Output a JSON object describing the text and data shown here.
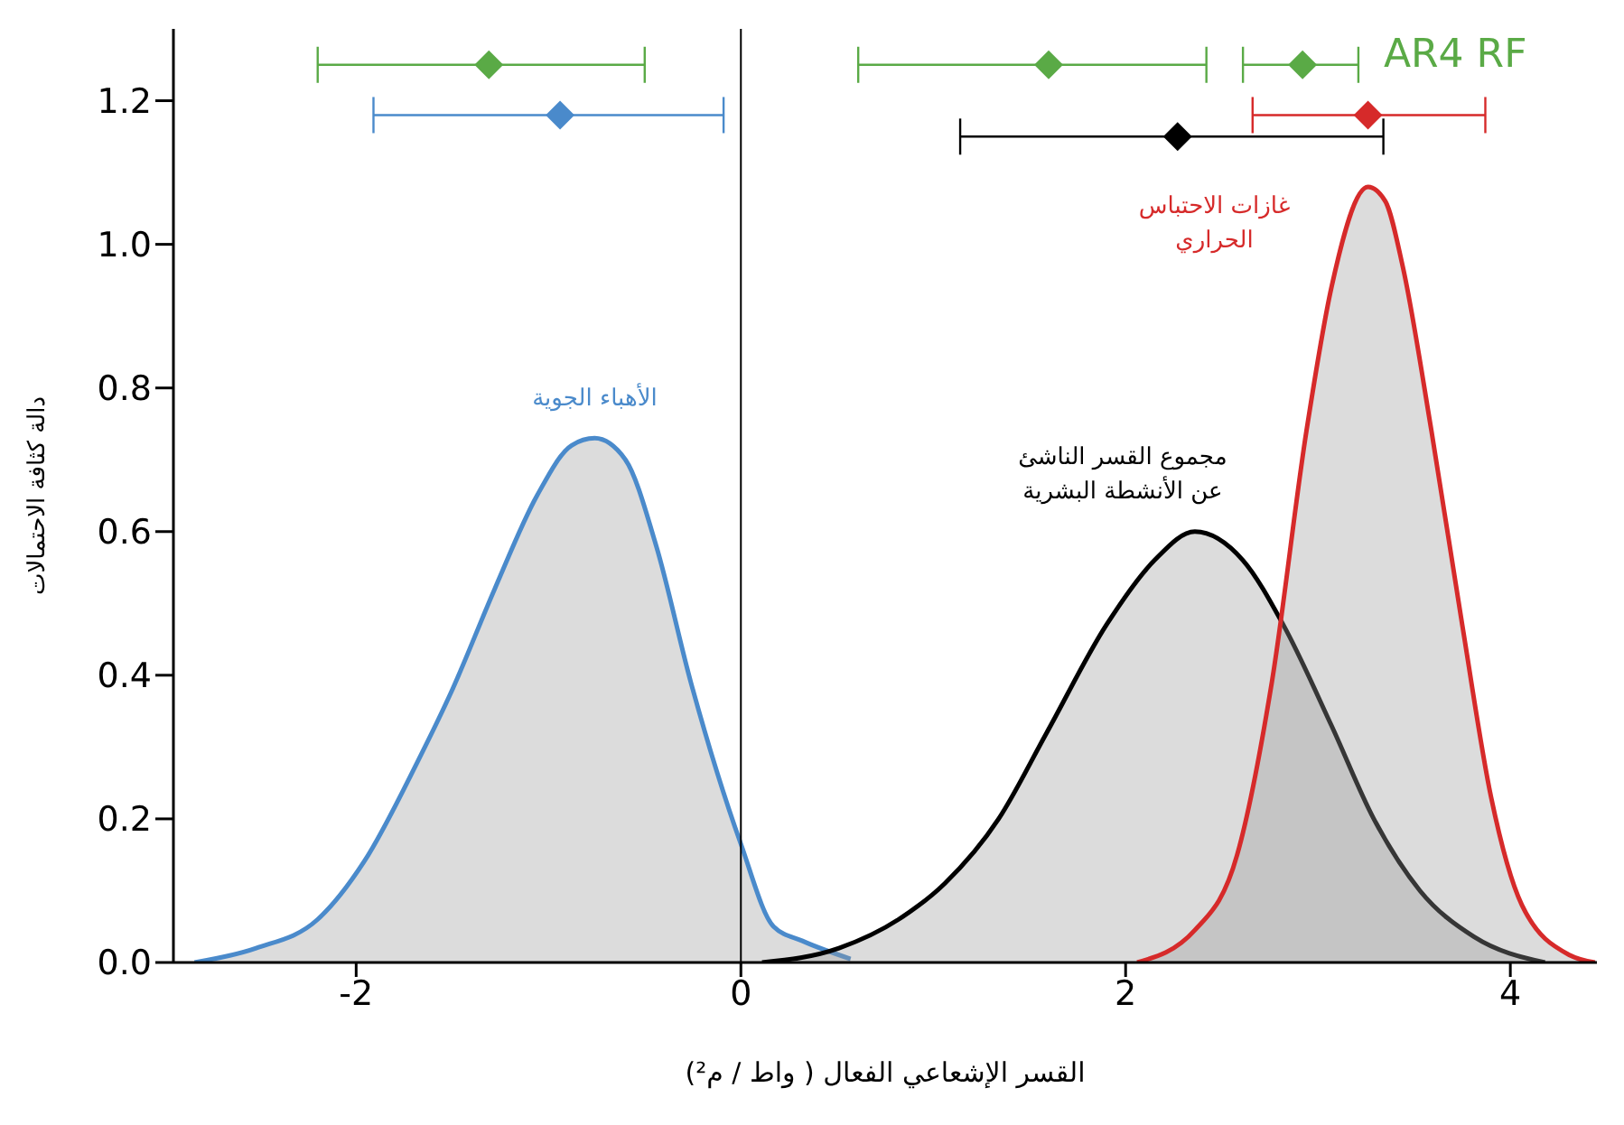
{
  "chart_data": {
    "type": "area",
    "xlabel": "القسر الإشعاعي الفعال ( واط / م²)",
    "ylabel": "دالة كثافة الاحتمالات",
    "xlim": [
      -2.95,
      4.45
    ],
    "ylim": [
      0,
      1.3
    ],
    "xticks": [
      -2,
      0,
      2,
      4
    ],
    "yticks": [
      {
        "value": 0,
        "label": "0.0"
      },
      {
        "value": 0.2,
        "label": "0.2"
      },
      {
        "value": 0.4,
        "label": "0.4"
      },
      {
        "value": 0.6,
        "label": "0.6"
      },
      {
        "value": 0.8,
        "label": "0.8"
      },
      {
        "value": 1.0,
        "label": "1.0"
      },
      {
        "value": 1.2,
        "label": "1.2"
      }
    ],
    "ref_lines": [
      {
        "axis": "x",
        "value": 0,
        "color": "#000000"
      }
    ],
    "series": [
      {
        "name": "الأهباء الجوية",
        "color": "#4a8acb",
        "x": [
          -2.84,
          -2.52,
          -2.2,
          -1.96,
          -1.68,
          -1.5,
          -1.28,
          -1.06,
          -0.88,
          -0.76,
          -0.6,
          -0.44,
          -0.26,
          0,
          0.17,
          0.32,
          0.57
        ],
        "values": [
          0,
          0.02,
          0.06,
          0.14,
          0.28,
          0.38,
          0.52,
          0.65,
          0.72,
          0.73,
          0.7,
          0.58,
          0.39,
          0.165,
          0.05,
          0.03,
          0.005
        ]
      },
      {
        "name": "مجموع القسر الناشئ\nعن الأنشطة البشرية",
        "color": "#000000",
        "x": [
          0.11,
          0.51,
          0.82,
          1.06,
          1.34,
          1.59,
          1.9,
          2.15,
          2.36,
          2.61,
          2.82,
          3.07,
          3.29,
          3.53,
          3.81,
          4.18
        ],
        "values": [
          0,
          0.02,
          0.06,
          0.11,
          0.2,
          0.32,
          0.47,
          0.56,
          0.6,
          0.56,
          0.47,
          0.33,
          0.2,
          0.1,
          0.036,
          0
        ]
      },
      {
        "name": "غازات الاحتباس\nالحراري",
        "color": "#d62a2a",
        "x": [
          2.06,
          2.36,
          2.58,
          2.76,
          2.94,
          3.07,
          3.26,
          3.35,
          3.44,
          3.59,
          3.75,
          3.9,
          4.06,
          4.31,
          4.44
        ],
        "values": [
          0,
          0.045,
          0.15,
          0.39,
          0.74,
          0.94,
          1.08,
          1.06,
          0.97,
          0.74,
          0.47,
          0.23,
          0.08,
          0.01,
          0
        ]
      },
      {
        "type": "scatter",
        "name": "AR4 RF",
        "color": "#5aaa46",
        "marker": "diamond",
        "x": [
          -1.31,
          1.6,
          2.92
        ],
        "values": [
          1.25,
          1.25,
          1.25
        ],
        "xerrors": [
          [
            -2.2,
            -0.5
          ],
          [
            0.61,
            2.42
          ],
          [
            2.61,
            3.21
          ]
        ]
      },
      {
        "type": "scatter",
        "color": "#4a8acb",
        "marker": "diamond",
        "x": [
          -0.94
        ],
        "values": [
          1.18
        ],
        "xerrors": [
          [
            -1.91,
            -0.09
          ]
        ]
      },
      {
        "type": "scatter",
        "color": "#d62a2a",
        "marker": "diamond",
        "x": [
          3.26
        ],
        "values": [
          1.18
        ],
        "xerrors": [
          [
            2.66,
            3.87
          ]
        ]
      },
      {
        "type": "scatter",
        "color": "#000000",
        "marker": "diamond",
        "x": [
          2.27
        ],
        "values": [
          1.15
        ],
        "xerrors": [
          [
            1.14,
            3.34
          ]
        ]
      }
    ]
  }
}
